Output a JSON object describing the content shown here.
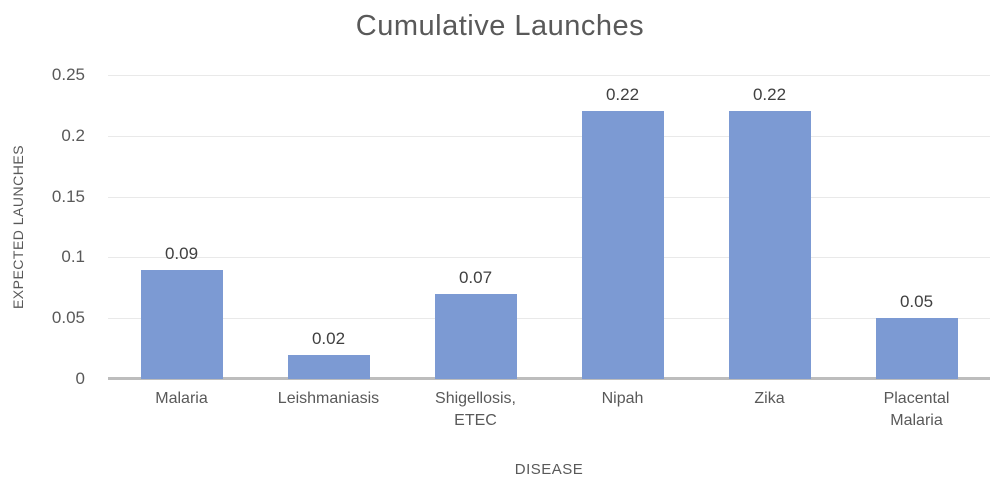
{
  "chart_data": {
    "type": "bar",
    "title": "Cumulative Launches",
    "xlabel": "DISEASE",
    "ylabel": "EXPECTED LAUNCHES",
    "categories": [
      "Malaria",
      "Leishmaniasis",
      "Shigellosis,\nETEC",
      "Nipah",
      "Zika",
      "Placental\nMalaria"
    ],
    "values": [
      0.09,
      0.02,
      0.07,
      0.22,
      0.22,
      0.05
    ],
    "data_labels": [
      "0.09",
      "0.02",
      "0.07",
      "0.22",
      "0.22",
      "0.05"
    ],
    "y_ticks": [
      0,
      0.05,
      0.1,
      0.15,
      0.2,
      0.25
    ],
    "y_tick_labels": [
      "0",
      "0.05",
      "0.1",
      "0.15",
      "0.2",
      "0.25"
    ],
    "ylim": [
      0,
      0.25
    ],
    "grid": true,
    "legend_position": "none",
    "colors": {
      "bar": "#7C9AD3",
      "title": "#595959",
      "axis_text": "#595959",
      "data_label": "#404040",
      "gridline": "#E9E9E9",
      "axis_line": "#BDBDBD",
      "background": "#FFFFFF"
    }
  }
}
